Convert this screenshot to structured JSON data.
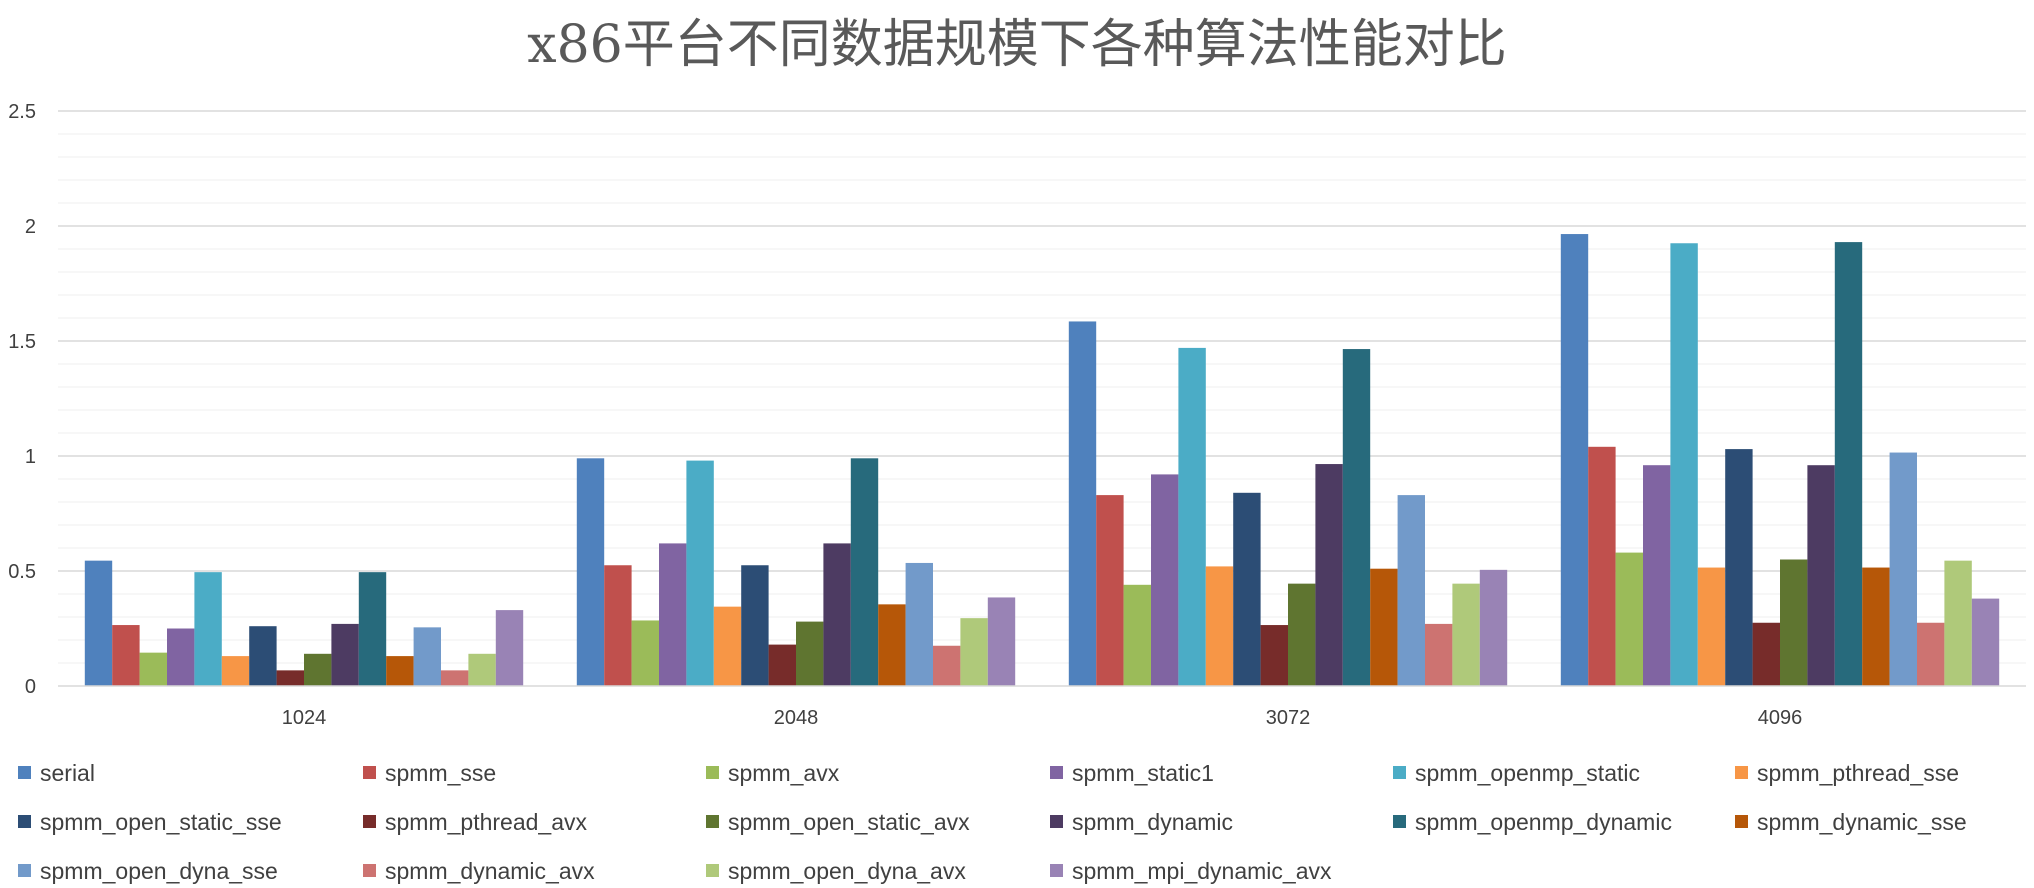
{
  "chart_data": {
    "type": "bar",
    "title": "x86平台不同数据规模下各种算法性能对比",
    "xlabel": "",
    "ylabel": "",
    "ylim": [
      0,
      2.5
    ],
    "y_ticks": [
      "0",
      "0.5",
      "1",
      "1.5",
      "2",
      "2.5"
    ],
    "grid": true,
    "legend_position": "bottom",
    "categories": [
      "1024",
      "2048",
      "3072",
      "4096"
    ],
    "series": [
      {
        "name": "serial",
        "color": "#4F81BD",
        "values": [
          0.545,
          0.99,
          1.585,
          1.965
        ]
      },
      {
        "name": "spmm_sse",
        "color": "#C0504D",
        "values": [
          0.265,
          0.525,
          0.83,
          1.04
        ]
      },
      {
        "name": "spmm_avx",
        "color": "#9BBB59",
        "values": [
          0.145,
          0.285,
          0.44,
          0.58
        ]
      },
      {
        "name": "spmm_static1",
        "color": "#8064A2",
        "values": [
          0.25,
          0.62,
          0.92,
          0.96
        ]
      },
      {
        "name": "spmm_openmp_static",
        "color": "#4BACC6",
        "values": [
          0.495,
          0.98,
          1.47,
          1.925
        ]
      },
      {
        "name": "spmm_pthread_sse",
        "color": "#F79646",
        "values": [
          0.13,
          0.345,
          0.52,
          0.515
        ]
      },
      {
        "name": "spmm_open_static_sse",
        "color": "#2C4D75",
        "values": [
          0.26,
          0.525,
          0.84,
          1.03
        ]
      },
      {
        "name": "spmm_pthread_avx",
        "color": "#772C2A",
        "values": [
          0.068,
          0.18,
          0.265,
          0.275
        ]
      },
      {
        "name": "spmm_open_static_avx",
        "color": "#5F7530",
        "values": [
          0.14,
          0.28,
          0.445,
          0.55
        ]
      },
      {
        "name": "spmm_dynamic",
        "color": "#4D3B62",
        "values": [
          0.27,
          0.62,
          0.965,
          0.96
        ]
      },
      {
        "name": "spmm_openmp_dynamic",
        "color": "#276A7C",
        "values": [
          0.495,
          0.99,
          1.465,
          1.93
        ]
      },
      {
        "name": "spmm_dynamic_sse",
        "color": "#B65708",
        "values": [
          0.13,
          0.355,
          0.51,
          0.515
        ]
      },
      {
        "name": "spmm_open_dyna_sse",
        "color": "#729ACA",
        "values": [
          0.255,
          0.535,
          0.83,
          1.015
        ]
      },
      {
        "name": "spmm_dynamic_avx",
        "color": "#CD7371",
        "values": [
          0.068,
          0.175,
          0.27,
          0.275
        ]
      },
      {
        "name": "spmm_open_dyna_avx",
        "color": "#AFC97A",
        "values": [
          0.14,
          0.295,
          0.445,
          0.545
        ]
      },
      {
        "name": "spmm_mpi_dynamic_avx",
        "color": "#9983B5",
        "values": [
          0.33,
          0.385,
          0.505,
          0.38
        ]
      }
    ]
  }
}
